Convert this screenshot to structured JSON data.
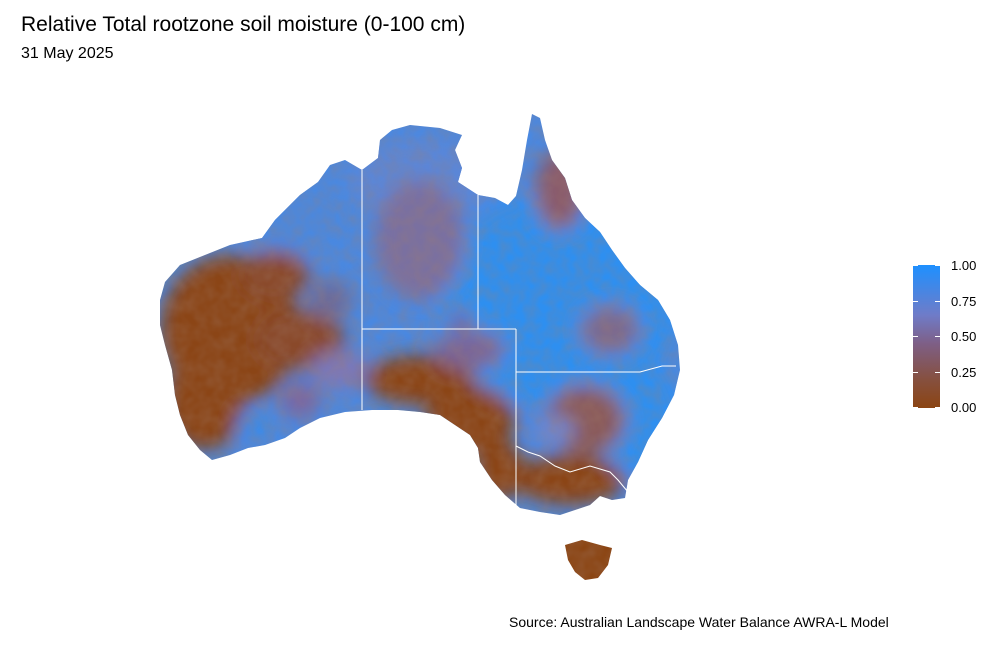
{
  "title": "Relative Total rootzone soil moisture (0-100 cm)",
  "subtitle": "31 May 2025",
  "source": "Source: Australian Landscape Water Balance AWRA-L Model",
  "legend": {
    "ticks": [
      "1.00",
      "0.75",
      "0.50",
      "0.25",
      "0.00"
    ],
    "colors": {
      "high": "#1e90ff",
      "mid": "#7b6fa6",
      "low": "#8b4513"
    }
  },
  "colors": {
    "wet": "#2f8ff0",
    "wet_mid": "#5b86d6",
    "mid": "#7d6a96",
    "dry_mid": "#8a4f3a",
    "dry": "#8b4513",
    "borders": "#ffffff"
  }
}
